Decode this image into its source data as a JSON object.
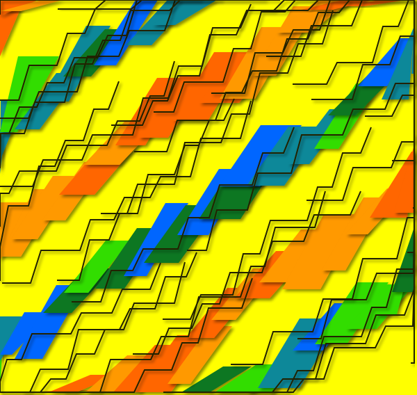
{
  "colors": {
    "background": "#ffff00",
    "orange": "#ff6600",
    "light_orange": "#ff9900",
    "green": "#33dd00",
    "dark_green": "#117722",
    "blue": "#0066ff",
    "teal": "#118899",
    "line": "#222200"
  }
}
